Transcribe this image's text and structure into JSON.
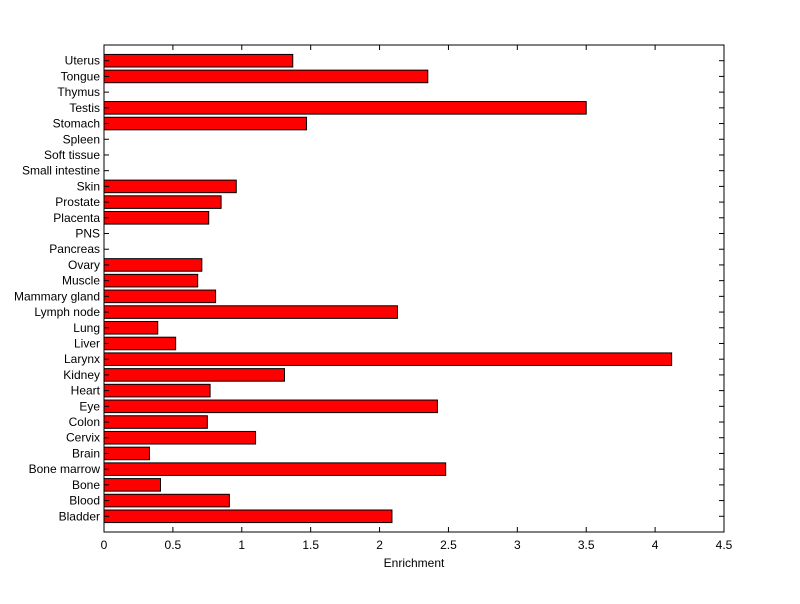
{
  "chart_data": {
    "type": "bar",
    "orientation": "horizontal",
    "categories": [
      "Bladder",
      "Blood",
      "Bone",
      "Bone marrow",
      "Brain",
      "Cervix",
      "Colon",
      "Eye",
      "Heart",
      "Kidney",
      "Larynx",
      "Liver",
      "Lung",
      "Lymph node",
      "Mammary gland",
      "Muscle",
      "Ovary",
      "Pancreas",
      "PNS",
      "Placenta",
      "Prostate",
      "Skin",
      "Small intestine",
      "Soft tissue",
      "Spleen",
      "Stomach",
      "Testis",
      "Thymus",
      "Tongue",
      "Uterus"
    ],
    "values": [
      2.09,
      0.91,
      0.41,
      2.48,
      0.33,
      1.1,
      0.75,
      2.42,
      0.77,
      1.31,
      4.12,
      0.52,
      0.39,
      2.13,
      0.81,
      0.68,
      0.71,
      0,
      0,
      0.76,
      0.85,
      0.96,
      0,
      0,
      0,
      1.47,
      3.5,
      0,
      2.35,
      1.37
    ],
    "title": "",
    "xlabel": "Enrichment",
    "ylabel": "",
    "xlim": [
      0,
      4.5
    ],
    "xticks": [
      "0",
      "0.5",
      "1",
      "1.5",
      "2",
      "2.5",
      "3",
      "3.5",
      "4",
      "4.5"
    ],
    "grid": false,
    "bar_color": "#ff0000",
    "edge_color": "#000000"
  }
}
